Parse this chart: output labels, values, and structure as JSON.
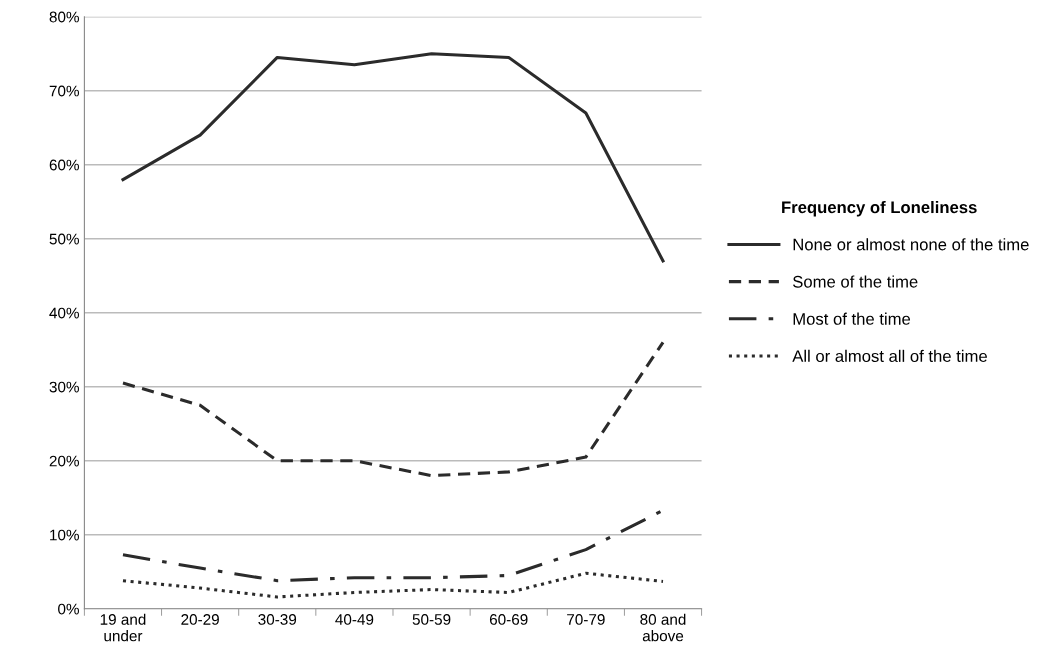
{
  "chart_data": {
    "type": "line",
    "categories": [
      "19 and\nunder",
      "20-29",
      "30-39",
      "40-49",
      "50-59",
      "60-69",
      "70-79",
      "80 and\nabove"
    ],
    "series": [
      {
        "name": "None or almost none of the time",
        "color": "#2b2b2b",
        "line_style": "solid",
        "values": [
          58,
          64,
          74.5,
          73.5,
          75,
          74.5,
          67,
          47
        ]
      },
      {
        "name": "Some of the time",
        "color": "#2b2b2b",
        "line_style": "dashed",
        "values": [
          30.5,
          27.5,
          20,
          20,
          18,
          18.5,
          20.5,
          36
        ]
      },
      {
        "name": "Most of the time",
        "color": "#2b2b2b",
        "line_style": "dashdot",
        "values": [
          7.3,
          5.5,
          3.8,
          4.2,
          4.2,
          4.5,
          8,
          13.3
        ]
      },
      {
        "name": "All or almost all of the time",
        "color": "#2b2b2b",
        "line_style": "dotted",
        "values": [
          3.8,
          2.8,
          1.6,
          2.2,
          2.6,
          2.2,
          4.8,
          3.7
        ]
      }
    ],
    "ylim": [
      0,
      80
    ],
    "yticks": [
      {
        "value": 0,
        "label": "0%"
      },
      {
        "value": 10,
        "label": "10%"
      },
      {
        "value": 20,
        "label": "20%"
      },
      {
        "value": 30,
        "label": "30%"
      },
      {
        "value": 40,
        "label": "40%"
      },
      {
        "value": 50,
        "label": "50%"
      },
      {
        "value": 60,
        "label": "60%"
      },
      {
        "value": 70,
        "label": "70%"
      },
      {
        "value": 80,
        "label": "80%"
      }
    ],
    "grid": "y",
    "legend": "right",
    "legend_title": "Frequency of Loneliness",
    "marker": "none"
  }
}
